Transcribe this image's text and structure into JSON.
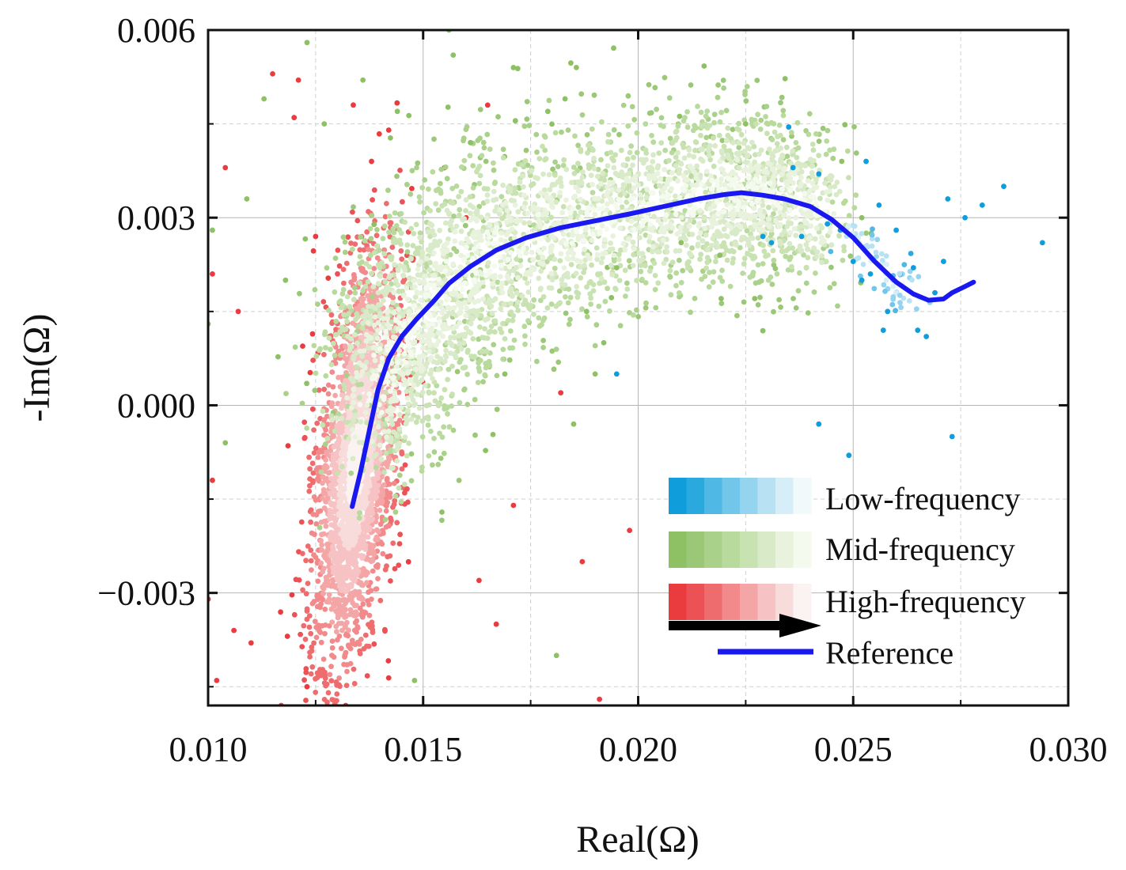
{
  "chart_data": {
    "type": "scatter",
    "title": "",
    "xlabel": "Real(Ω)",
    "ylabel": "-Im(Ω)",
    "xlim": [
      0.01,
      0.03
    ],
    "ylim": [
      -0.0048,
      0.006
    ],
    "x_ticks": [
      {
        "value": 0.01,
        "label": "0.010"
      },
      {
        "value": 0.015,
        "label": "0.015"
      },
      {
        "value": 0.02,
        "label": "0.020"
      },
      {
        "value": 0.025,
        "label": "0.025"
      },
      {
        "value": 0.03,
        "label": "0.030"
      }
    ],
    "y_ticks": [
      {
        "value": 0.006,
        "label": "0.006"
      },
      {
        "value": 0.003,
        "label": "0.003"
      },
      {
        "value": 0.0,
        "label": "0.000"
      },
      {
        "value": -0.003,
        "label": "−0.003"
      }
    ],
    "grid": true,
    "legend_position": "bottom-right",
    "series": [
      {
        "name": "Low-frequency",
        "kind": "scatter-density",
        "colors": [
          "#0f9ddc",
          "#2aa9df",
          "#4fb8e4",
          "#72c6e9",
          "#95d4ee",
          "#b8e2f3",
          "#d6eef7",
          "#f2f9fb"
        ],
        "outliers": [
          [
            0.0235,
            0.00445
          ],
          [
            0.0236,
            0.0038
          ],
          [
            0.0242,
            0.0037
          ],
          [
            0.0253,
            0.0039
          ],
          [
            0.0256,
            0.0032
          ],
          [
            0.026,
            0.0028
          ],
          [
            0.0264,
            0.0022
          ],
          [
            0.0269,
            0.0018
          ],
          [
            0.0271,
            0.0023
          ],
          [
            0.0272,
            0.0033
          ],
          [
            0.0276,
            0.003
          ],
          [
            0.028,
            0.0032
          ],
          [
            0.0285,
            0.0035
          ],
          [
            0.0294,
            0.0026
          ],
          [
            0.0258,
            0.0015
          ],
          [
            0.0257,
            0.0012
          ],
          [
            0.0254,
            0.0021
          ],
          [
            0.0252,
            0.002
          ],
          [
            0.025,
            0.0023
          ],
          [
            0.0265,
            0.0012
          ],
          [
            0.0267,
            0.0011
          ],
          [
            0.0242,
            -0.0003
          ],
          [
            0.0249,
            -0.0008
          ],
          [
            0.0273,
            -0.0005
          ],
          [
            0.0195,
            0.0005
          ],
          [
            0.0238,
            0.0027
          ],
          [
            0.0231,
            0.0026
          ],
          [
            0.0229,
            0.0027
          ],
          [
            0.0247,
            0.0028
          ],
          [
            0.0244,
            0.0029
          ]
        ]
      },
      {
        "name": "Mid-frequency",
        "kind": "scatter-density",
        "colors": [
          "#8dc164",
          "#9bc876",
          "#aad189",
          "#b9da9d",
          "#c9e2b2",
          "#d9eac8",
          "#e8f2dd",
          "#f5faef"
        ],
        "outliers": [
          [
            0.0123,
            0.0058
          ],
          [
            0.0136,
            0.0052
          ],
          [
            0.0161,
            0.0042
          ],
          [
            0.0157,
            0.0056
          ],
          [
            0.0156,
            0.006
          ],
          [
            0.0171,
            0.0054
          ],
          [
            0.0179,
            0.0047
          ],
          [
            0.0183,
            0.0049
          ],
          [
            0.0109,
            0.0033
          ],
          [
            0.0113,
            0.0049
          ],
          [
            0.0101,
            0.0028
          ],
          [
            0.0127,
            0.0045
          ],
          [
            0.0144,
            0.0047
          ],
          [
            0.019,
            0.0005
          ],
          [
            0.0185,
            -0.0003
          ],
          [
            0.0181,
            -0.004
          ],
          [
            0.0148,
            -0.0044
          ],
          [
            0.0104,
            -0.0006
          ],
          [
            0.01,
            0.0013
          ],
          [
            0.0252,
            0.003
          ],
          [
            0.0225,
            0.0045
          ],
          [
            0.021,
            0.0026
          ],
          [
            0.0188,
            0.0015
          ],
          [
            0.0195,
            0.0022
          ],
          [
            0.0219,
            0.0024
          ],
          [
            0.0118,
            0.002
          ],
          [
            0.0169,
            0.0005
          ],
          [
            0.0192,
            0.001
          ]
        ]
      },
      {
        "name": "High-frequency",
        "kind": "scatter-density",
        "colors": [
          "#ea3c3f",
          "#ec5255",
          "#ef6c6e",
          "#f28a8c",
          "#f4a6a7",
          "#f6c2c3",
          "#f8dcdc",
          "#faf3f2"
        ],
        "outliers": [
          [
            0.0115,
            0.0053
          ],
          [
            0.0121,
            0.0052
          ],
          [
            0.012,
            0.0046
          ],
          [
            0.0104,
            0.0038
          ],
          [
            0.0165,
            0.0048
          ],
          [
            0.0155,
            0.0038
          ],
          [
            0.0142,
            0.0044
          ],
          [
            0.0138,
            0.0039
          ],
          [
            0.0101,
            -0.0012
          ],
          [
            0.01,
            -0.0031
          ],
          [
            0.0102,
            -0.0044
          ],
          [
            0.0106,
            -0.0036
          ],
          [
            0.011,
            -0.0038
          ],
          [
            0.0117,
            -0.0048
          ],
          [
            0.0123,
            -0.0045
          ],
          [
            0.0132,
            -0.0048
          ],
          [
            0.0147,
            -0.0049
          ],
          [
            0.0191,
            -0.0047
          ],
          [
            0.0198,
            -0.002
          ],
          [
            0.0187,
            -0.0025
          ],
          [
            0.0182,
            0.0002
          ],
          [
            0.0171,
            -0.0016
          ],
          [
            0.0163,
            -0.0028
          ],
          [
            0.0167,
            -0.0035
          ],
          [
            0.0101,
            0.0021
          ],
          [
            0.0107,
            0.0015
          ],
          [
            0.0125,
            0.0027
          ],
          [
            0.016,
            0.003
          ]
        ]
      }
    ],
    "reference": {
      "name": "Reference",
      "color": "#1a18f0",
      "points": [
        [
          0.01335,
          -0.00162
        ],
        [
          0.01355,
          -0.00105
        ],
        [
          0.01375,
          -0.0004
        ],
        [
          0.01395,
          0.00025
        ],
        [
          0.0142,
          0.00075
        ],
        [
          0.0145,
          0.0011
        ],
        [
          0.01485,
          0.00138
        ],
        [
          0.01525,
          0.00167
        ],
        [
          0.0156,
          0.00195
        ],
        [
          0.0161,
          0.00222
        ],
        [
          0.0167,
          0.00248
        ],
        [
          0.0174,
          0.00268
        ],
        [
          0.0182,
          0.00284
        ],
        [
          0.019,
          0.00295
        ],
        [
          0.0198,
          0.00306
        ],
        [
          0.0206,
          0.00318
        ],
        [
          0.0214,
          0.0033
        ],
        [
          0.022,
          0.00337
        ],
        [
          0.0224,
          0.0034
        ],
        [
          0.0229,
          0.00336
        ],
        [
          0.0234,
          0.0033
        ],
        [
          0.024,
          0.00318
        ],
        [
          0.0245,
          0.00297
        ],
        [
          0.025,
          0.00268
        ],
        [
          0.0255,
          0.0023
        ],
        [
          0.026,
          0.00197
        ],
        [
          0.0264,
          0.00178
        ],
        [
          0.02675,
          0.00168
        ],
        [
          0.0271,
          0.0017
        ],
        [
          0.0273,
          0.0018
        ],
        [
          0.0276,
          0.0019
        ],
        [
          0.0278,
          0.00197
        ]
      ]
    }
  },
  "legend": {
    "low": "Low-frequency",
    "mid": "Mid-frequency",
    "high": "High-frequency",
    "reference": "Reference"
  }
}
